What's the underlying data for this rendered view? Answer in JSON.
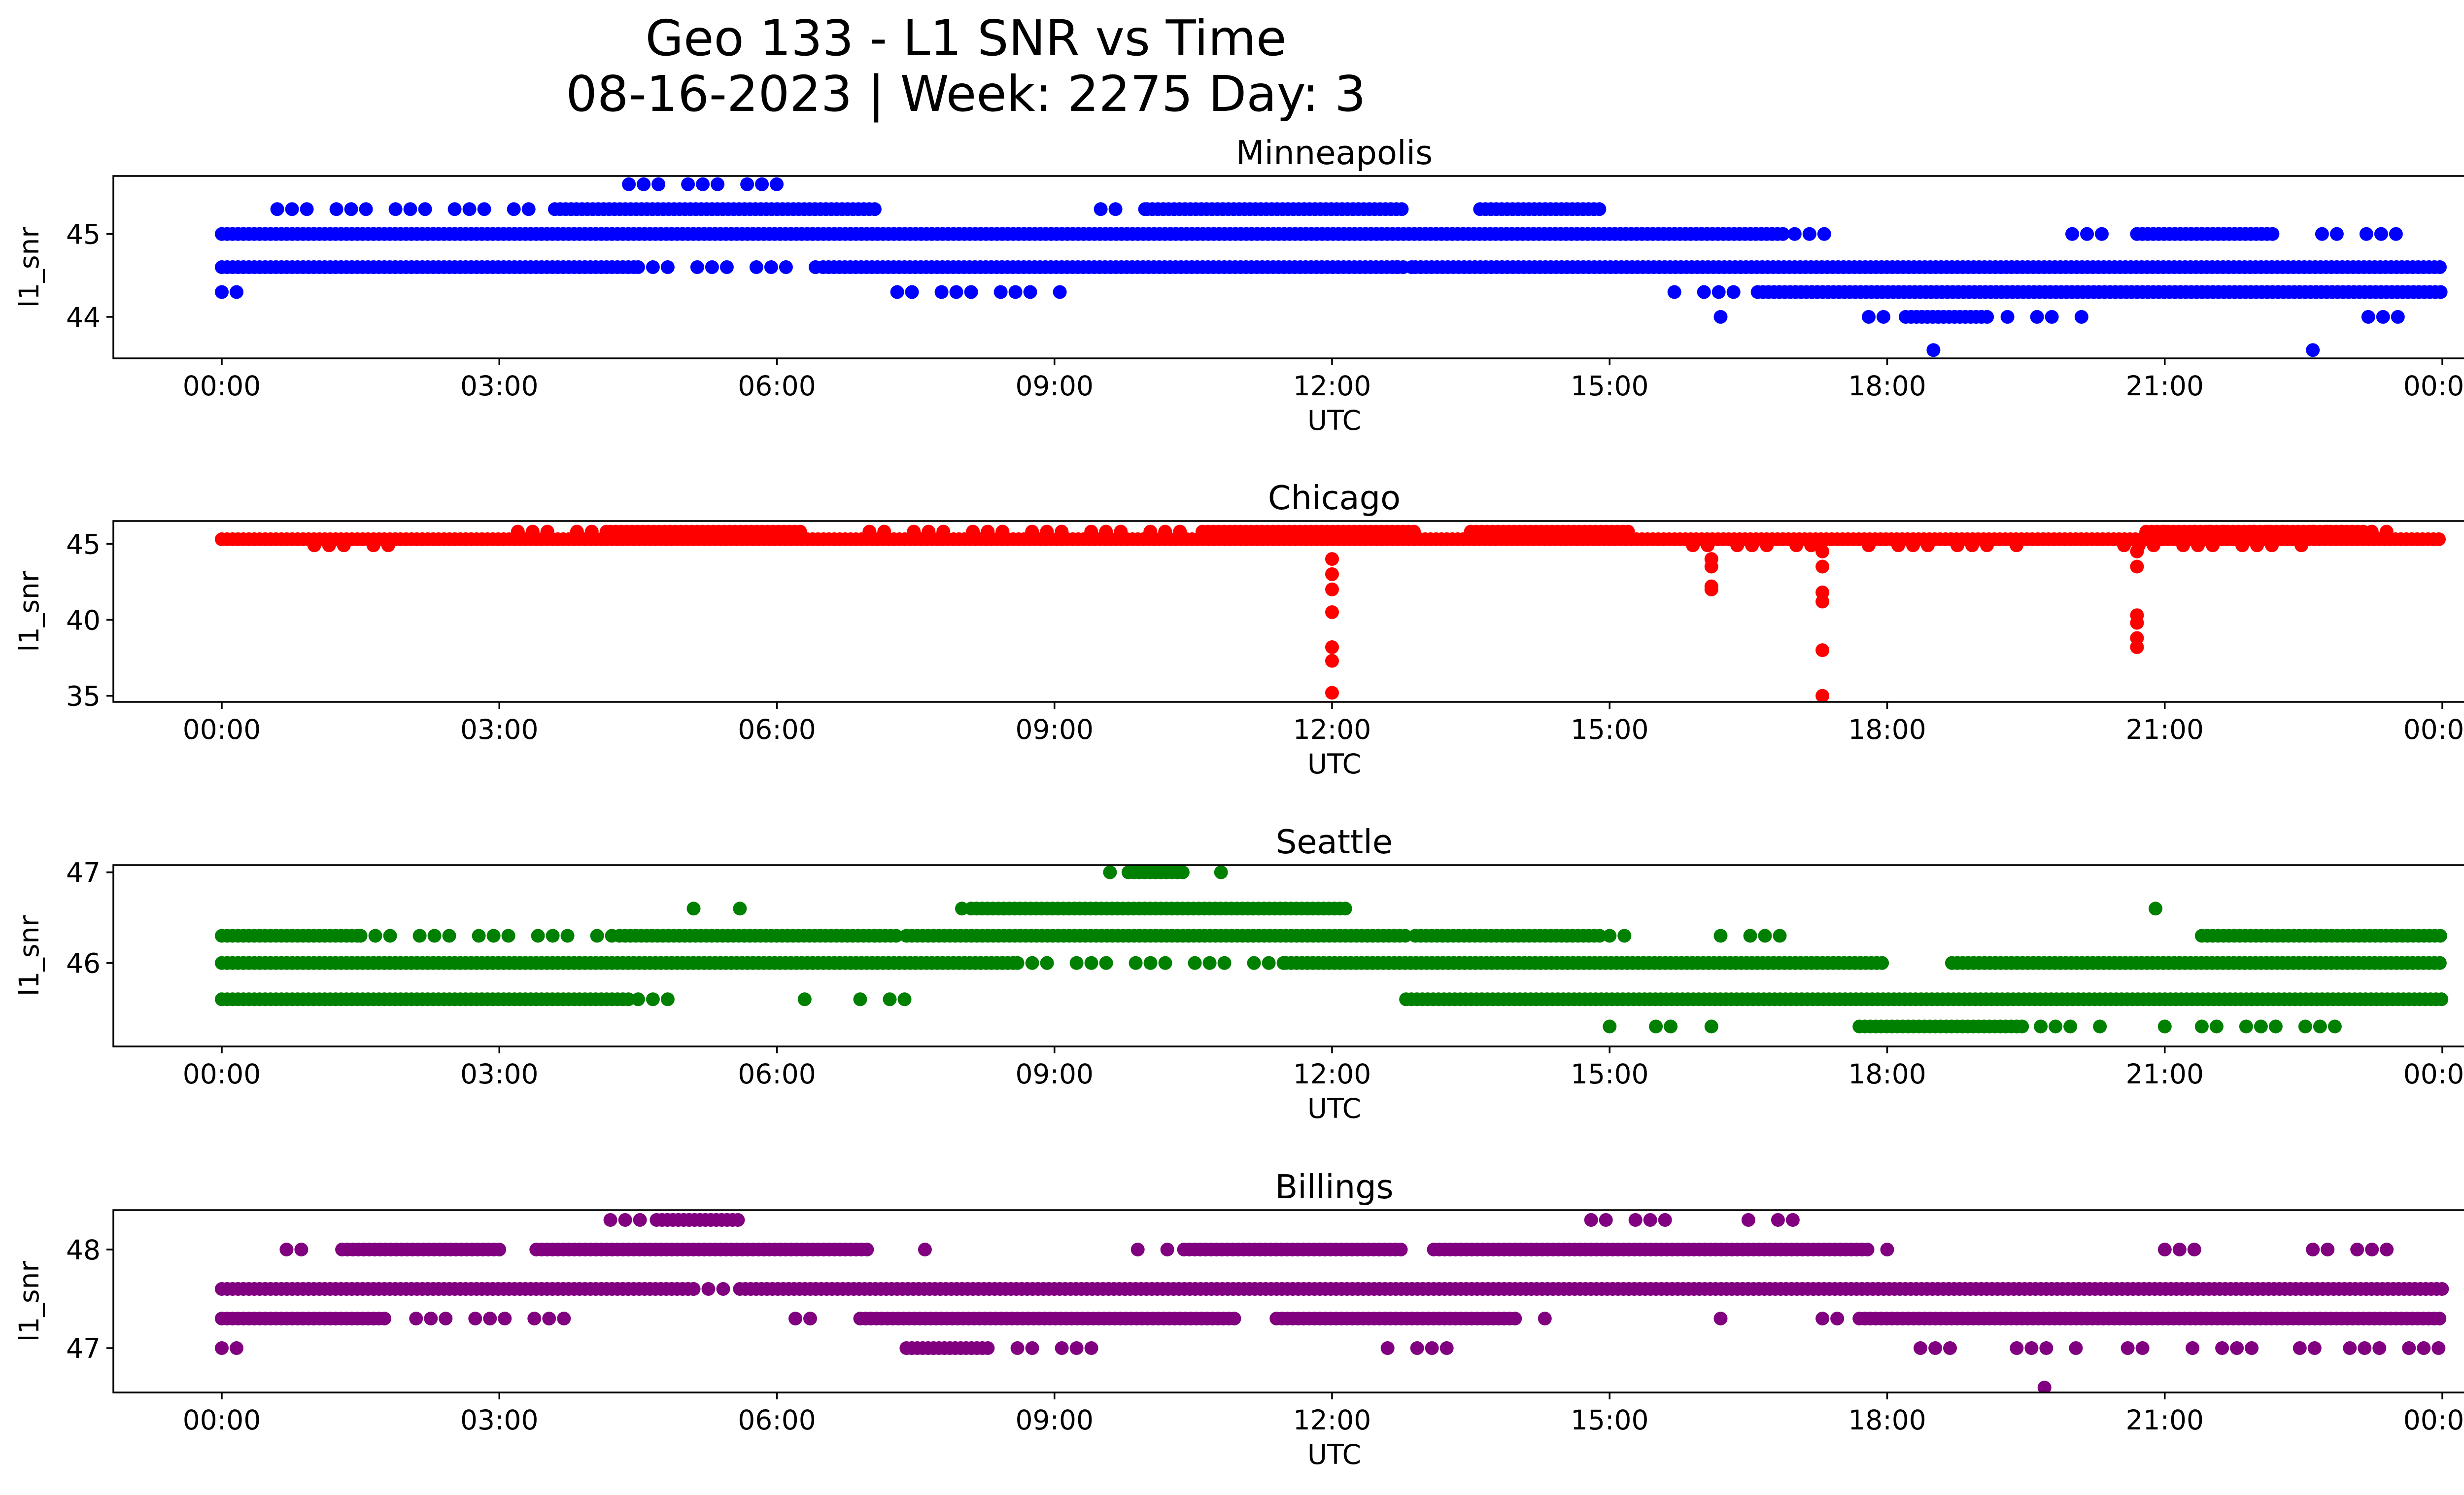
{
  "figure": {
    "title_line1": "Geo 133 - L1 SNR vs Time",
    "title_line2": "08-16-2023 | Week: 2275 Day: 3"
  },
  "chart_data": [
    {
      "type": "scatter",
      "title": "Minneapolis",
      "xlabel": "UTC",
      "ylabel": "l1_snr",
      "color": "#0000ff",
      "xlim": [
        "2023-08-15T23:30",
        "2023-08-17T00:40"
      ],
      "ylim": [
        43.5,
        45.7
      ],
      "xticks": [
        "00:00",
        "03:00",
        "06:00",
        "09:00",
        "12:00",
        "15:00",
        "18:00",
        "21:00",
        "00:00"
      ],
      "yticks": [
        44,
        45
      ],
      "x_unit": "hours UTC since 2023-08-16T00:00",
      "levels": [
        {
          "y": 45.0,
          "segments": [
            [
              0.0,
              16.9
            ]
          ],
          "scatter": [
            [
              17.0,
              17.6
            ]
          ]
        },
        {
          "y": 44.6,
          "segments": [
            [
              0.0,
              4.5
            ],
            [
              6.5,
              12.8
            ],
            [
              12.9,
              24.0
            ]
          ],
          "scatter": [
            [
              4.5,
              6.5
            ],
            [
              12.7,
              13.0
            ]
          ]
        },
        {
          "y": 44.3,
          "segments": [
            [
              16.6,
              24.0
            ]
          ],
          "scatter": [
            [
              0.0,
              0.3
            ],
            [
              7.3,
              9.1
            ],
            [
              15.7,
              16.6
            ]
          ]
        },
        {
          "y": 45.3,
          "segments": [
            [
              3.6,
              7.1
            ],
            [
              10.0,
              12.8
            ],
            [
              13.6,
              14.9
            ]
          ],
          "scatter": [
            [
              0.6,
              3.4
            ],
            [
              9.5,
              10.0
            ]
          ]
        },
        {
          "y": 45.0,
          "segments": [
            [
              20.7,
              22.2
            ]
          ],
          "scatter": [
            [
              20.0,
              20.6
            ],
            [
              22.7,
              23.5
            ]
          ]
        },
        {
          "y": 45.6,
          "segments": [],
          "scatter": [
            [
              4.4,
              6.1
            ]
          ]
        },
        {
          "y": 44.0,
          "segments": [
            [
              18.2,
              19.1
            ]
          ],
          "scatter": [
            [
              16.2,
              16.2
            ],
            [
              17.8,
              18.1
            ],
            [
              19.3,
              19.8
            ],
            [
              20.1,
              20.1
            ],
            [
              23.2,
              23.7
            ]
          ]
        },
        {
          "y": 43.6,
          "segments": [],
          "scatter": [
            [
              18.5,
              18.5
            ],
            [
              22.6,
              22.6
            ]
          ]
        }
      ],
      "spikes": []
    },
    {
      "type": "scatter",
      "title": "Chicago",
      "xlabel": "UTC",
      "ylabel": "l1_snr",
      "color": "#ff0000",
      "xlim": [
        "2023-08-15T23:30",
        "2023-08-17T00:40"
      ],
      "ylim": [
        34.6,
        46.5
      ],
      "xticks": [
        "00:00",
        "03:00",
        "06:00",
        "09:00",
        "12:00",
        "15:00",
        "18:00",
        "21:00",
        "00:00"
      ],
      "yticks": [
        35,
        40,
        45
      ],
      "x_unit": "hours UTC since 2023-08-16T00:00",
      "levels": [
        {
          "y": 45.3,
          "segments": [
            [
              0.0,
              24.0
            ]
          ],
          "scatter": []
        },
        {
          "y": 45.8,
          "segments": [
            [
              4.2,
              6.3
            ],
            [
              10.6,
              12.9
            ],
            [
              13.5,
              15.2
            ],
            [
              20.8,
              23.2
            ]
          ],
          "scatter": [
            [
              3.2,
              4.2
            ],
            [
              7.0,
              10.5
            ],
            [
              21.0,
              23.5
            ]
          ]
        },
        {
          "y": 44.9,
          "segments": [],
          "scatter": [
            [
              1.0,
              1.9
            ],
            [
              15.9,
              17.3
            ],
            [
              17.8,
              19.5
            ],
            [
              20.4,
              22.5
            ]
          ]
        }
      ],
      "spikes": [
        {
          "x": 12.0,
          "values": [
            44.0,
            43.0,
            42.0,
            40.5,
            38.2,
            37.3,
            35.2
          ]
        },
        {
          "x": 16.1,
          "values": [
            44.0,
            43.5,
            42.2,
            42.0
          ]
        },
        {
          "x": 17.3,
          "values": [
            44.5,
            43.5,
            41.8,
            41.2,
            38.0,
            35.0
          ]
        },
        {
          "x": 20.7,
          "values": [
            44.5,
            43.5,
            40.3,
            39.8,
            38.8,
            38.2
          ]
        }
      ]
    },
    {
      "type": "scatter",
      "title": "Seattle",
      "xlabel": "UTC",
      "ylabel": "l1_snr",
      "color": "#008000",
      "xlim": [
        "2023-08-15T23:30",
        "2023-08-17T00:40"
      ],
      "ylim": [
        45.08,
        47.08
      ],
      "xticks": [
        "00:00",
        "03:00",
        "06:00",
        "09:00",
        "12:00",
        "15:00",
        "18:00",
        "21:00",
        "00:00"
      ],
      "yticks": [
        46,
        47
      ],
      "x_unit": "hours UTC since 2023-08-16T00:00",
      "levels": [
        {
          "y": 46.0,
          "segments": [
            [
              0.0,
              8.6
            ],
            [
              11.5,
              18.0
            ],
            [
              18.7,
              24.0
            ]
          ],
          "scatter": [
            [
              8.6,
              11.5
            ]
          ]
        },
        {
          "y": 46.3,
          "segments": [
            [
              0.0,
              1.5
            ],
            [
              4.3,
              7.3
            ],
            [
              7.4,
              12.8
            ],
            [
              12.9,
              14.9
            ]
          ],
          "scatter": [
            [
              1.5,
              4.3
            ],
            [
              15.0,
              15.3
            ],
            [
              16.2,
              17.0
            ],
            [
              20.9,
              21.0
            ]
          ]
        },
        {
          "y": 46.3,
          "segments": [
            [
              21.4,
              24.0
            ]
          ],
          "scatter": []
        },
        {
          "y": 45.6,
          "segments": [
            [
              0.0,
              4.4
            ],
            [
              12.8,
              24.0
            ]
          ],
          "scatter": [
            [
              4.5,
              5.0
            ],
            [
              6.3,
              6.3
            ],
            [
              6.9,
              7.5
            ]
          ]
        },
        {
          "y": 46.6,
          "segments": [
            [
              8.1,
              12.2
            ]
          ],
          "scatter": [
            [
              5.1,
              5.1
            ],
            [
              5.6,
              5.6
            ],
            [
              8.0,
              8.1
            ],
            [
              20.9,
              20.9
            ]
          ]
        },
        {
          "y": 47.0,
          "segments": [
            [
              9.8,
              10.4
            ]
          ],
          "scatter": [
            [
              9.6,
              9.6
            ],
            [
              10.8,
              10.8
            ]
          ]
        },
        {
          "y": 45.3,
          "segments": [
            [
              17.7,
              19.5
            ]
          ],
          "scatter": [
            [
              15.0,
              15.0
            ],
            [
              15.5,
              15.8
            ],
            [
              16.1,
              16.3
            ],
            [
              19.5,
              20.3
            ],
            [
              21.0,
              21.0
            ],
            [
              21.4,
              22.9
            ]
          ]
        }
      ],
      "spikes": []
    },
    {
      "type": "scatter",
      "title": "Billings",
      "xlabel": "UTC",
      "ylabel": "l1_snr",
      "color": "#800080",
      "xlim": [
        "2023-08-15T23:30",
        "2023-08-17T00:40"
      ],
      "ylim": [
        46.55,
        48.4
      ],
      "xticks": [
        "00:00",
        "03:00",
        "06:00",
        "09:00",
        "12:00",
        "15:00",
        "18:00",
        "21:00",
        "00:00"
      ],
      "yticks": [
        47,
        48
      ],
      "x_unit": "hours UTC since 2023-08-16T00:00",
      "levels": [
        {
          "y": 47.6,
          "segments": [
            [
              0.0,
              5.1
            ],
            [
              5.6,
              24.0
            ]
          ],
          "scatter": [
            [
              5.1,
              5.6
            ]
          ]
        },
        {
          "y": 47.3,
          "segments": [
            [
              0.0,
              1.8
            ],
            [
              6.9,
              11.0
            ],
            [
              11.4,
              14.0
            ],
            [
              17.7,
              24.0
            ]
          ],
          "scatter": [
            [
              2.1,
              3.8
            ],
            [
              6.2,
              6.6
            ],
            [
              14.3,
              14.6
            ],
            [
              16.2,
              16.2
            ],
            [
              17.3,
              17.6
            ]
          ]
        },
        {
          "y": 48.0,
          "segments": [
            [
              1.3,
              3.0
            ],
            [
              3.4,
              7.0
            ],
            [
              10.4,
              12.8
            ],
            [
              13.1,
              17.8
            ]
          ],
          "scatter": [
            [
              0.7,
              0.9
            ],
            [
              7.6,
              7.6
            ],
            [
              9.9,
              10.3
            ],
            [
              18.0,
              18.0
            ],
            [
              21.0,
              21.5
            ],
            [
              22.6,
              23.5
            ]
          ]
        },
        {
          "y": 48.3,
          "segments": [
            [
              4.7,
              5.6
            ]
          ],
          "scatter": [
            [
              4.2,
              4.7
            ],
            [
              14.8,
              15.6
            ],
            [
              16.5,
              17.0
            ]
          ]
        },
        {
          "y": 47.0,
          "segments": [
            [
              7.4,
              8.3
            ]
          ],
          "scatter": [
            [
              0.0,
              0.2
            ],
            [
              8.6,
              9.7
            ],
            [
              12.6,
              13.3
            ],
            [
              18.2,
              18.8
            ],
            [
              19.4,
              20.1
            ],
            [
              20.6,
              20.8
            ],
            [
              21.3,
              22.0
            ],
            [
              22.3,
              22.7
            ],
            [
              23.0,
              24.0
            ]
          ]
        },
        {
          "y": 46.6,
          "segments": [],
          "scatter": [
            [
              19.7,
              19.7
            ]
          ]
        }
      ],
      "spikes": []
    }
  ]
}
